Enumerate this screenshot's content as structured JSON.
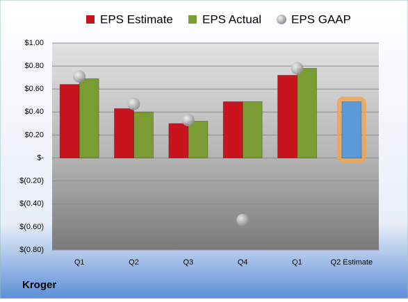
{
  "chart_data": {
    "type": "bar",
    "footer": "Kroger",
    "categories": [
      "Q1",
      "Q2",
      "Q3",
      "Q4",
      "Q1",
      "Q2 Estimate"
    ],
    "series": [
      {
        "name": "EPS Estimate",
        "color": "#c8151d",
        "colors": [
          "#c8151d",
          "#c8151d",
          "#c8151d",
          "#c8151d",
          "#c8151d",
          "#5b9bd5"
        ],
        "values": [
          0.64,
          0.43,
          0.3,
          0.49,
          0.72,
          0.49
        ]
      },
      {
        "name": "EPS Actual",
        "color": "#7a9c32",
        "values": [
          0.69,
          0.4,
          0.32,
          0.49,
          0.78,
          null
        ]
      },
      {
        "name": "EPS GAAP",
        "color": "#a6a6a6",
        "marker": "circle",
        "values": [
          0.71,
          0.47,
          0.33,
          -0.54,
          0.78,
          null
        ]
      }
    ],
    "ylim": [
      -0.8,
      1.0
    ],
    "yticks": [
      {
        "value": -0.8,
        "label": "$(0.80)"
      },
      {
        "value": -0.6,
        "label": "$(0.60)"
      },
      {
        "value": -0.4,
        "label": "$(0.40)"
      },
      {
        "value": -0.2,
        "label": "$(0.20)"
      },
      {
        "value": 0,
        "label": "$-"
      },
      {
        "value": 0.2,
        "label": "$0.20"
      },
      {
        "value": 0.4,
        "label": "$0.40"
      },
      {
        "value": 0.6,
        "label": "$0.60"
      },
      {
        "value": 0.8,
        "label": "$0.80"
      },
      {
        "value": 1.0,
        "label": "$1.00"
      }
    ],
    "grid": true,
    "legend": "top"
  }
}
